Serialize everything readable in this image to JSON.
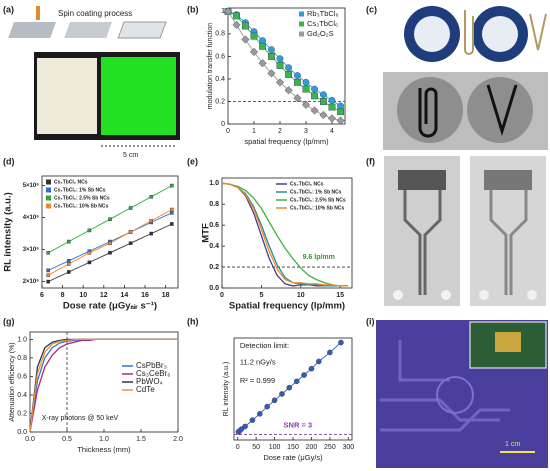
{
  "panel_labels": [
    "(a)",
    "(b)",
    "(c)",
    "(d)",
    "(e)",
    "(f)",
    "(g)",
    "(h)",
    "(i)"
  ],
  "images": {
    "a_title": "Spin coating process",
    "a_scale": "5 cm",
    "i_scale": "1 cm"
  },
  "chart_data": [
    {
      "type": "line",
      "xlabel": "spatial frequency (lp/mm)",
      "ylabel": "modulation transfer function",
      "x": [
        0,
        0.33,
        0.67,
        1,
        1.33,
        1.67,
        2,
        2.33,
        2.67,
        3,
        3.33,
        3.67,
        4,
        4.33
      ],
      "series": [
        {
          "name": "Rb₃TbCl₆",
          "color": "#2f9be0",
          "marker": "circle",
          "values": [
            1,
            0.97,
            0.9,
            0.82,
            0.74,
            0.66,
            0.58,
            0.5,
            0.43,
            0.37,
            0.31,
            0.26,
            0.21,
            0.16
          ]
        },
        {
          "name": "Cs₃TbCl₆",
          "color": "#3bb54a",
          "marker": "square",
          "values": [
            1,
            0.96,
            0.87,
            0.78,
            0.69,
            0.6,
            0.52,
            0.44,
            0.37,
            0.31,
            0.25,
            0.2,
            0.15,
            0.11
          ]
        },
        {
          "name": "Gd₂O₂S",
          "color": "#9a9a9a",
          "marker": "diamond",
          "values": [
            1,
            0.88,
            0.75,
            0.64,
            0.54,
            0.45,
            0.37,
            0.3,
            0.23,
            0.17,
            0.12,
            0.08,
            0.05,
            0.03
          ]
        }
      ],
      "xlim": [
        0,
        4.5
      ],
      "xticks": [
        0,
        1,
        2,
        3,
        4
      ],
      "ylim": [
        0,
        1.03
      ],
      "yticks": [
        0,
        0.2,
        0.4,
        0.6,
        0.8,
        1
      ],
      "ref_lines": [
        {
          "axis": "y",
          "value": 0.2
        }
      ],
      "legend": "upper right"
    },
    {
      "type": "line",
      "xlabel": "Dose rate (μGyₐᵢᵣ s⁻¹)",
      "ylabel": "RL intensity (a.u.)",
      "x": [
        6.6,
        8.6,
        10.6,
        12.6,
        14.6,
        16.6,
        18.6
      ],
      "series": [
        {
          "name": "Cs₃TbCl₆ NCs",
          "color": "#333333",
          "marker": "square",
          "values": [
            2000000,
            2300000,
            2600000,
            2900000,
            3200000,
            3500000,
            3800000
          ]
        },
        {
          "name": "Cs₃TbCl₆: 1% Sb NCs",
          "color": "#2f6fd4",
          "marker": "square",
          "values": [
            2350000,
            2650000,
            2950000,
            3250000,
            3550000,
            3850000,
            4150000
          ]
        },
        {
          "name": "Cs₃TbCl₆: 2.5% Sb NCs",
          "color": "#2eaa3c",
          "marker": "square",
          "values": [
            2900000,
            3250000,
            3600000,
            3950000,
            4300000,
            4650000,
            5000000
          ]
        },
        {
          "name": "Cs₃TbCl₆: 10% Sb NCs",
          "color": "#ef8a2a",
          "marker": "square",
          "values": [
            2200000,
            2550000,
            2900000,
            3200000,
            3550000,
            3900000,
            4250000
          ]
        }
      ],
      "xlim": [
        6,
        19.2
      ],
      "xticks": [
        6,
        8,
        10,
        12,
        14,
        16,
        18
      ],
      "ylim": [
        1800000,
        5300000
      ],
      "yticks": [
        {
          "value": 2000000,
          "label": "2×10⁶"
        },
        {
          "value": 3000000,
          "label": "3×10⁶"
        },
        {
          "value": 4000000,
          "label": "4×10⁶"
        },
        {
          "value": 5000000,
          "label": "5×10⁶"
        }
      ],
      "legend": "upper left"
    },
    {
      "type": "line",
      "xlabel": "Spatial frequency (lp/mm)",
      "ylabel": "MTF",
      "x": [
        0,
        1,
        2,
        3,
        4,
        5,
        6,
        7,
        8,
        9,
        10,
        11,
        12,
        13,
        14,
        15,
        16
      ],
      "series": [
        {
          "name": "Cs₃TbCl₆ NCs",
          "color": "#4b3a8c",
          "values": [
            1,
            0.99,
            0.96,
            0.88,
            0.72,
            0.5,
            0.28,
            0.12,
            0.04,
            0.02,
            0.03,
            0.03,
            0.02,
            0.02,
            0.02,
            0.02,
            0.02
          ]
        },
        {
          "name": "Cs₃TbCl₆: 1% Sb NCs",
          "color": "#2a8c8c",
          "values": [
            1,
            0.99,
            0.96,
            0.9,
            0.78,
            0.6,
            0.4,
            0.22,
            0.1,
            0.05,
            0.04,
            0.03,
            0.03,
            0.02,
            0.02,
            0.02,
            0.02
          ]
        },
        {
          "name": "Cs₃TbCl₆: 2.5% Sb NCs",
          "color": "#3cb43c",
          "values": [
            1,
            0.99,
            0.97,
            0.93,
            0.86,
            0.76,
            0.63,
            0.5,
            0.38,
            0.28,
            0.19,
            0.12,
            0.08,
            0.05,
            0.03,
            0.02,
            0.02
          ]
        },
        {
          "name": "Cs₃TbCl₆: 10% Sb NCs",
          "color": "#ef8a2a",
          "values": [
            1,
            0.99,
            0.96,
            0.89,
            0.76,
            0.56,
            0.35,
            0.18,
            0.08,
            0.05,
            0.05,
            0.04,
            0.04,
            0.03,
            0.03,
            0.02,
            0.02
          ]
        }
      ],
      "xlim": [
        0,
        16.5
      ],
      "xticks": [
        0,
        5,
        10,
        15
      ],
      "ylim": [
        0,
        1.05
      ],
      "yticks": [
        {
          "value": 0,
          "label": "0.0"
        },
        0.2,
        0.4,
        0.6,
        0.8,
        {
          "value": 1,
          "label": "1.0"
        }
      ],
      "ref_lines": [
        {
          "axis": "y",
          "value": 0.2
        }
      ],
      "annotations": [
        {
          "text": "9.6 lp/mm",
          "color": "#2e9a2e"
        }
      ],
      "legend": "upper right"
    },
    {
      "type": "line",
      "xlabel": "Thickness (mm)",
      "ylabel": "Attenuation efficiency (%)",
      "x": [
        0,
        0.1,
        0.2,
        0.3,
        0.4,
        0.5,
        0.6,
        0.7,
        0.8,
        0.9,
        1,
        1.1,
        1.2,
        1.3,
        1.4,
        1.5,
        1.6,
        1.7,
        1.8,
        1.9,
        2
      ],
      "series": [
        {
          "name": "CsPbBr₃",
          "color": "#3b6fd4",
          "values": [
            0,
            0.55,
            0.8,
            0.91,
            0.96,
            0.98,
            0.99,
            1,
            1,
            1,
            1,
            1,
            1,
            1,
            1,
            1,
            1,
            1,
            1,
            1,
            1
          ]
        },
        {
          "name": "Cs₃CeBr₆",
          "color": "#a0307e",
          "values": [
            0,
            0.45,
            0.7,
            0.83,
            0.91,
            0.95,
            0.97,
            0.99,
            0.99,
            1,
            1,
            1,
            1,
            1,
            1,
            1,
            1,
            1,
            1,
            1,
            1
          ]
        },
        {
          "name": "PbWO₄",
          "color": "#333344",
          "values": [
            0,
            0.7,
            0.91,
            0.97,
            0.99,
            1,
            1,
            1,
            1,
            1,
            1,
            1,
            1,
            1,
            1,
            1,
            1,
            1,
            1,
            1,
            1
          ]
        },
        {
          "name": "CdTe",
          "color": "#e8923a",
          "values": [
            0,
            0.63,
            0.86,
            0.95,
            0.98,
            0.99,
            1,
            1,
            1,
            1,
            1,
            1,
            1,
            1,
            1,
            1,
            1,
            1,
            1,
            1,
            1
          ]
        }
      ],
      "xlim": [
        0,
        2
      ],
      "xticks": [
        {
          "value": 0,
          "label": "0.0"
        },
        0.5,
        {
          "value": 1,
          "label": "1.0"
        },
        1.5,
        {
          "value": 2,
          "label": "2.0"
        }
      ],
      "ylim": [
        0,
        1.08
      ],
      "yticks": [
        {
          "value": 0,
          "label": "0.0"
        },
        0.2,
        0.4,
        0.6,
        0.8,
        {
          "value": 1,
          "label": "1.0"
        }
      ],
      "ref_lines": [
        {
          "axis": "x",
          "value": 0.5
        }
      ],
      "annotations": [
        {
          "text": "X-ray photons @ 50 keV",
          "color": "#222222"
        }
      ],
      "legend": "center right"
    },
    {
      "type": "line",
      "xlabel": "Dose rate (μGy/s)",
      "ylabel": "RL intensity (a.u.)",
      "x": [
        2,
        5,
        10,
        20,
        40,
        60,
        80,
        100,
        120,
        140,
        160,
        180,
        200,
        220,
        250,
        280
      ],
      "series": [
        {
          "color": "#2f5fb0",
          "marker": "circle",
          "values": [
            0.01,
            0.02,
            0.04,
            0.07,
            0.14,
            0.21,
            0.29,
            0.36,
            0.43,
            0.5,
            0.57,
            0.64,
            0.71,
            0.79,
            0.89,
            1
          ]
        }
      ],
      "xlim": [
        -10,
        310
      ],
      "xticks": [
        0,
        50,
        100,
        150,
        200,
        250,
        300
      ],
      "ylim": [
        -0.08,
        1.05
      ],
      "ref_lines": [
        {
          "axis": "y",
          "value": -0.02
        }
      ],
      "annotations": [
        {
          "text": "Detection limit:",
          "color": "#222222"
        },
        {
          "text": "11.2 nGy/s",
          "color": "#222222"
        },
        {
          "text": "R² = 0.999",
          "color": "#222222"
        },
        {
          "text": "SNR = 3",
          "color": "#8a3aa8"
        }
      ]
    }
  ]
}
